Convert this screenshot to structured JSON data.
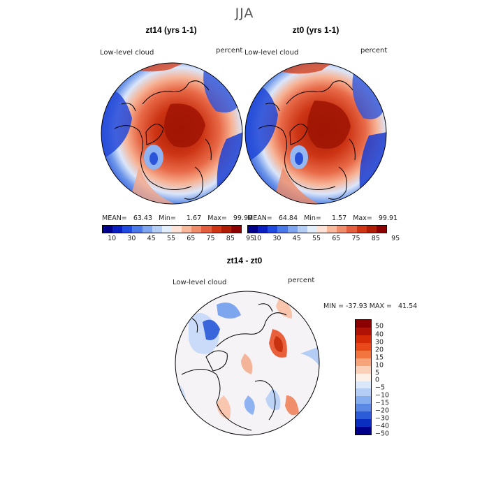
{
  "season": "JJA",
  "panels": [
    {
      "title": "zt14 (yrs 1-1)",
      "field": "Low-level cloud",
      "units": "percent",
      "stats": "MEAN=   63.43   Min=     1.67   Max=   99.90"
    },
    {
      "title": "zt0 (yrs 1-1)",
      "field": "Low-level cloud",
      "units": "percent",
      "stats": "MEAN=   64.84   Min=     1.57   Max=   99.91"
    }
  ],
  "diff_panel": {
    "title": "zt14 - zt0",
    "field": "Low-level cloud",
    "units": "percent",
    "stats": "MIN = -37.93 MAX =   41.54"
  },
  "colorbar_abs": {
    "colors": [
      "#00008b",
      "#0a1fbf",
      "#1f4be0",
      "#4a7ae8",
      "#7ea6ef",
      "#b3cdf5",
      "#e3eefb",
      "#fde3d6",
      "#f8b89c",
      "#f08e6c",
      "#e45f3f",
      "#cf3515",
      "#b01d05",
      "#8b0000"
    ],
    "tick_labels": [
      "10",
      "30",
      "45",
      "55",
      "65",
      "75",
      "85",
      "95"
    ]
  },
  "colorbar_diff": {
    "colors": [
      "#8b0000",
      "#b01205",
      "#d42a08",
      "#e8481a",
      "#f27540",
      "#f8a47a",
      "#fbd0b8",
      "#fdf0e6",
      "#dbe8fb",
      "#b3cdf5",
      "#86adee",
      "#5a88e4",
      "#2d5cd8",
      "#0a2fc0",
      "#00008b"
    ],
    "labels": [
      "50",
      "40",
      "30",
      "20",
      "15",
      "10",
      "5",
      "0",
      "−5",
      "−10",
      "−15",
      "−20",
      "−30",
      "−40",
      "−50"
    ]
  }
}
